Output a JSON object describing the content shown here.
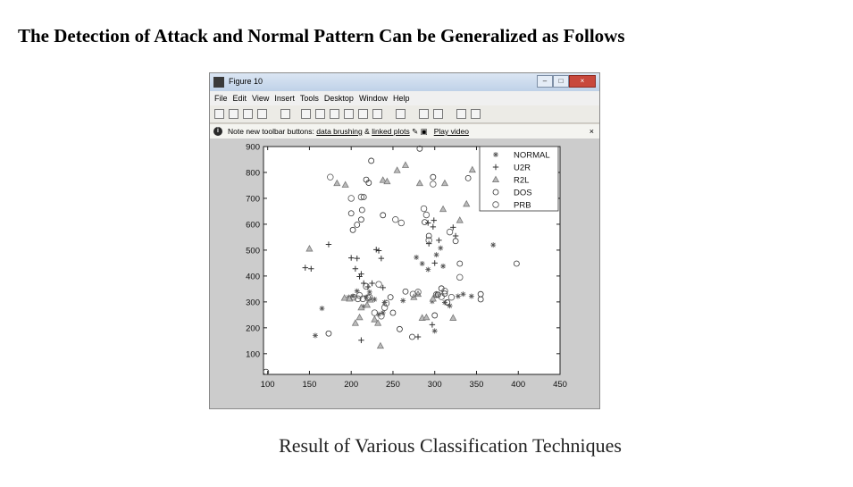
{
  "page": {
    "heading": "The Detection of Attack and Normal Pattern Can be Generalized as Follows",
    "caption": "Result of Various Classification Techniques"
  },
  "window": {
    "title": "Figure 10",
    "menu": [
      "File",
      "Edit",
      "View",
      "Insert",
      "Tools",
      "Desktop",
      "Window",
      "Help"
    ],
    "note_prefix": "Note new toolbar buttons:",
    "note_link1": "data brushing",
    "note_amp": "&",
    "note_link2": "linked plots",
    "note_video": "Play video",
    "note_close": "×",
    "controls": {
      "minimize": "–",
      "maximize": "□",
      "close": "×"
    }
  },
  "colors": {
    "accent": "#555555",
    "window_bg": "#cccccc"
  },
  "chart_data": {
    "type": "scatter",
    "title": "",
    "xlabel": "",
    "ylabel": "",
    "xlim": [
      95,
      450
    ],
    "ylim": [
      20,
      900
    ],
    "xticks": [
      100,
      150,
      200,
      250,
      300,
      350,
      400,
      450
    ],
    "yticks": [
      100,
      200,
      300,
      400,
      500,
      600,
      700,
      800,
      900
    ],
    "legend_position": "top-right",
    "series": [
      {
        "name": "NORMAL",
        "marker": "star",
        "points": [
          [
            157,
            170
          ],
          [
            165,
            275
          ],
          [
            197,
            318
          ],
          [
            202,
            322
          ],
          [
            207,
            342
          ],
          [
            214,
            282
          ],
          [
            218,
            318
          ],
          [
            222,
            338
          ],
          [
            228,
            310
          ],
          [
            233,
            252
          ],
          [
            238,
            258
          ],
          [
            240,
            298
          ],
          [
            262,
            305
          ],
          [
            278,
            472
          ],
          [
            285,
            448
          ],
          [
            292,
            425
          ],
          [
            297,
            302
          ],
          [
            300,
            188
          ],
          [
            302,
            482
          ],
          [
            307,
            508
          ],
          [
            310,
            438
          ],
          [
            312,
            298
          ],
          [
            318,
            285
          ],
          [
            328,
            322
          ],
          [
            334,
            330
          ],
          [
            344,
            322
          ],
          [
            370,
            520
          ]
        ]
      },
      {
        "name": "U2R",
        "marker": "plus",
        "points": [
          [
            145,
            432
          ],
          [
            152,
            428
          ],
          [
            173,
            522
          ],
          [
            200,
            470
          ],
          [
            207,
            468
          ],
          [
            205,
            428
          ],
          [
            210,
            398
          ],
          [
            212,
            408
          ],
          [
            215,
            372
          ],
          [
            220,
            358
          ],
          [
            225,
            372
          ],
          [
            230,
            502
          ],
          [
            233,
            498
          ],
          [
            236,
            468
          ],
          [
            238,
            355
          ],
          [
            212,
            152
          ],
          [
            280,
            165
          ],
          [
            297,
            212
          ],
          [
            293,
            525
          ],
          [
            298,
            590
          ],
          [
            299,
            615
          ],
          [
            305,
            538
          ],
          [
            325,
            555
          ],
          [
            322,
            588
          ],
          [
            292,
            605
          ],
          [
            300,
            450
          ]
        ]
      },
      {
        "name": "R2L",
        "marker": "triangle",
        "points": [
          [
            150,
            505
          ],
          [
            183,
            758
          ],
          [
            193,
            752
          ],
          [
            192,
            315
          ],
          [
            198,
            312
          ],
          [
            205,
            218
          ],
          [
            210,
            240
          ],
          [
            212,
            278
          ],
          [
            219,
            288
          ],
          [
            223,
            308
          ],
          [
            228,
            232
          ],
          [
            232,
            218
          ],
          [
            235,
            130
          ],
          [
            238,
            770
          ],
          [
            243,
            765
          ],
          [
            255,
            808
          ],
          [
            265,
            828
          ],
          [
            275,
            318
          ],
          [
            280,
            330
          ],
          [
            282,
            758
          ],
          [
            285,
            238
          ],
          [
            290,
            240
          ],
          [
            298,
            312
          ],
          [
            302,
            328
          ],
          [
            310,
            658
          ],
          [
            312,
            758
          ],
          [
            322,
            238
          ],
          [
            330,
            615
          ],
          [
            338,
            678
          ],
          [
            345,
            810
          ]
        ]
      },
      {
        "name": "DOS",
        "marker": "circle",
        "points": [
          [
            98,
            30
          ],
          [
            173,
            178
          ],
          [
            200,
            642
          ],
          [
            202,
            578
          ],
          [
            207,
            598
          ],
          [
            212,
            618
          ],
          [
            215,
            705
          ],
          [
            213,
            655
          ],
          [
            218,
            772
          ],
          [
            221,
            760
          ],
          [
            224,
            845
          ],
          [
            238,
            635
          ],
          [
            247,
            318
          ],
          [
            250,
            258
          ],
          [
            258,
            195
          ],
          [
            265,
            340
          ],
          [
            273,
            165
          ],
          [
            282,
            892
          ],
          [
            288,
            608
          ],
          [
            293,
            555
          ],
          [
            298,
            782
          ],
          [
            300,
            248
          ],
          [
            304,
            328
          ],
          [
            308,
            352
          ],
          [
            312,
            332
          ],
          [
            315,
            298
          ],
          [
            325,
            535
          ],
          [
            330,
            448
          ],
          [
            340,
            778
          ],
          [
            355,
            330
          ],
          [
            355,
            310
          ],
          [
            398,
            448
          ]
        ]
      },
      {
        "name": "PRB",
        "marker": "hexagon",
        "points": [
          [
            175,
            782
          ],
          [
            200,
            700
          ],
          [
            203,
            318
          ],
          [
            208,
            312
          ],
          [
            210,
            325
          ],
          [
            212,
            705
          ],
          [
            214,
            312
          ],
          [
            218,
            360
          ],
          [
            220,
            316
          ],
          [
            222,
            318
          ],
          [
            228,
            258
          ],
          [
            233,
            368
          ],
          [
            236,
            245
          ],
          [
            240,
            278
          ],
          [
            242,
            295
          ],
          [
            253,
            618
          ],
          [
            260,
            605
          ],
          [
            274,
            330
          ],
          [
            280,
            338
          ],
          [
            287,
            660
          ],
          [
            290,
            636
          ],
          [
            293,
            538
          ],
          [
            298,
            755
          ],
          [
            302,
            328
          ],
          [
            308,
            320
          ],
          [
            312,
            342
          ],
          [
            318,
            570
          ],
          [
            320,
            318
          ],
          [
            330,
            395
          ]
        ]
      }
    ]
  }
}
